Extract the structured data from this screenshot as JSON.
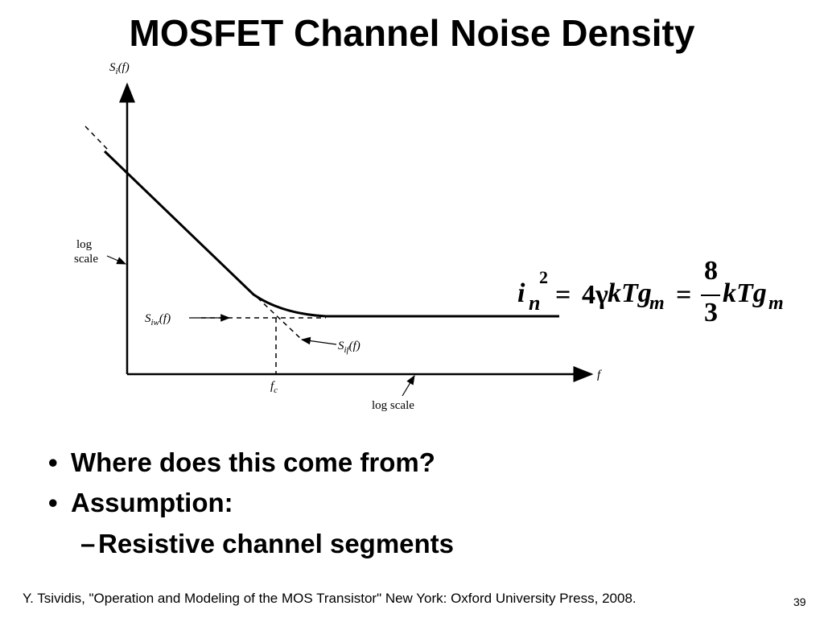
{
  "slide": {
    "title": "MOSFET Channel Noise Density",
    "page_number": "39",
    "citation": "Y. Tsividis, \"Operation and Modeling of the MOS Transistor\" New York: Oxford University Press, 2008."
  },
  "diagram": {
    "y_axis_label": {
      "main": "S",
      "sub": "i",
      "suffix": "(f)"
    },
    "x_axis_label": "f",
    "log_scale_y": [
      "log",
      "scale"
    ],
    "log_scale_x": "log scale",
    "siw_label": {
      "main": "S",
      "sub": "iw",
      "suffix": "(f)"
    },
    "sif_label": {
      "main": "S",
      "sub": "if",
      "suffix": "(f)"
    },
    "fc_label": {
      "main": "f",
      "sub": "c"
    }
  },
  "formula": {
    "lhs_var": "i",
    "lhs_sub": "n",
    "lhs_sup": "2",
    "equals": "=",
    "coef": "4γ",
    "mid_term": "kTg",
    "mid_sub": "m",
    "frac_num": "8",
    "frac_den": "3",
    "rhs_term": "kTg",
    "rhs_sub": "m"
  },
  "bullets": [
    "Where does this come from?",
    "Assumption:"
  ],
  "bullet_marker": "•",
  "sub_bullets": [
    "Resistive channel segments"
  ],
  "sub_bullet_marker": "–"
}
